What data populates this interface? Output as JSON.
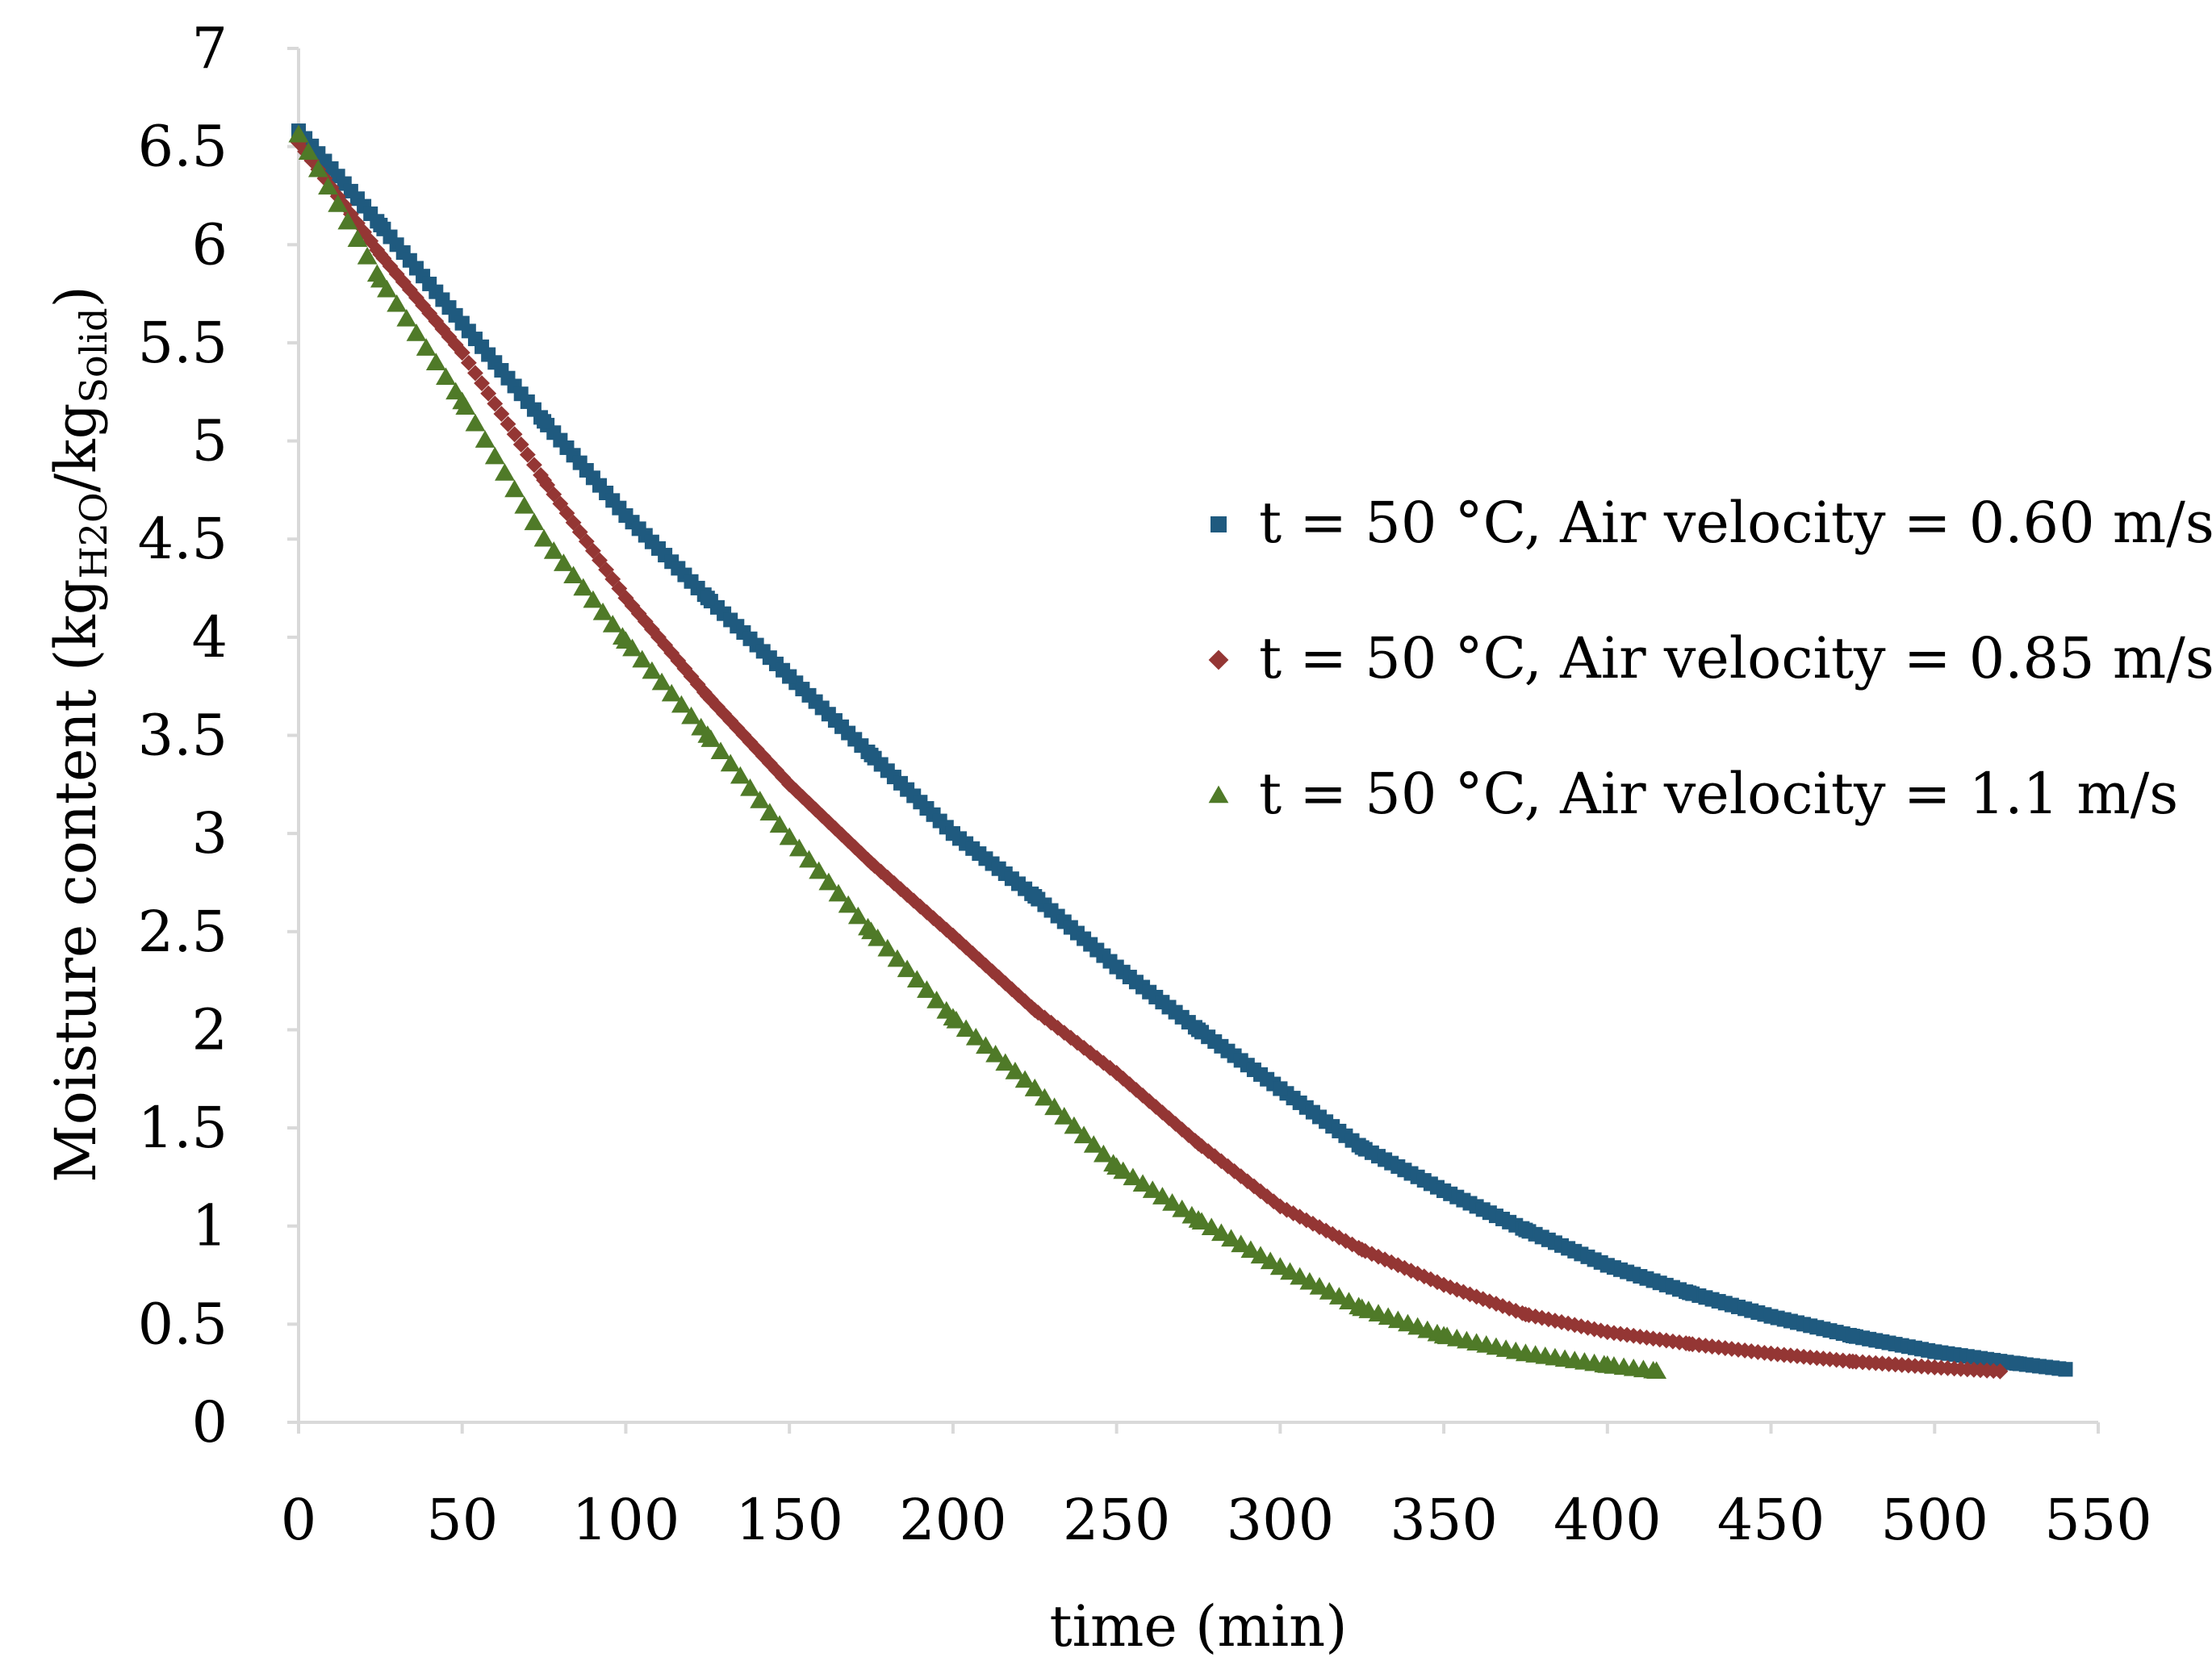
{
  "chart_data": {
    "type": "scatter",
    "title": "",
    "xlabel": "time (min)",
    "ylabel": {
      "prefix": "Moisture content (kg",
      "sub1": "H2O",
      "mid": "/kg",
      "sub2": "Solid",
      "suffix": ")"
    },
    "xlim": [
      0,
      550
    ],
    "ylim": [
      0,
      7
    ],
    "x_ticks": [
      "0",
      "50",
      "100",
      "150",
      "200",
      "250",
      "300",
      "350",
      "400",
      "450",
      "500",
      "550"
    ],
    "y_ticks": [
      "0",
      "0.5",
      "1",
      "1.5",
      "2",
      "2.5",
      "3",
      "3.5",
      "4",
      "4.5",
      "5",
      "5.5",
      "6",
      "6.5",
      "7"
    ],
    "legend_position": "right",
    "series": [
      {
        "name": "t = 50 °C, Air velocity = 0.60 m/s",
        "marker": "square",
        "color": "#1f5a7f",
        "x": [
          0,
          25,
          50,
          75,
          100,
          125,
          150,
          175,
          200,
          225,
          250,
          275,
          300,
          325,
          350,
          375,
          400,
          425,
          450,
          475,
          500,
          525,
          540
        ],
        "y": [
          6.58,
          6.1,
          5.6,
          5.1,
          4.62,
          4.2,
          3.8,
          3.4,
          3.0,
          2.68,
          2.32,
          2.0,
          1.7,
          1.4,
          1.18,
          0.98,
          0.8,
          0.66,
          0.54,
          0.44,
          0.36,
          0.3,
          0.27
        ]
      },
      {
        "name": "t = 50 °C, Air velocity = 0.85 m/s",
        "marker": "diamond",
        "color": "#943634",
        "x": [
          0,
          25,
          50,
          75,
          100,
          125,
          150,
          175,
          200,
          225,
          250,
          275,
          300,
          325,
          350,
          375,
          400,
          425,
          450,
          475,
          500,
          520
        ],
        "y": [
          6.52,
          5.95,
          5.45,
          4.8,
          4.2,
          3.7,
          3.25,
          2.85,
          2.48,
          2.1,
          1.78,
          1.42,
          1.1,
          0.88,
          0.7,
          0.55,
          0.46,
          0.4,
          0.35,
          0.31,
          0.28,
          0.26
        ]
      },
      {
        "name": "t = 50 °C, Air velocity = 1.1 m/s",
        "marker": "triangle",
        "color": "#4f7a28",
        "x": [
          0,
          25,
          50,
          75,
          100,
          125,
          150,
          175,
          200,
          225,
          250,
          275,
          300,
          325,
          350,
          375,
          400,
          415
        ],
        "y": [
          6.56,
          5.82,
          5.2,
          4.5,
          3.98,
          3.5,
          2.98,
          2.5,
          2.06,
          1.7,
          1.3,
          1.03,
          0.79,
          0.58,
          0.44,
          0.35,
          0.29,
          0.26
        ]
      }
    ]
  }
}
